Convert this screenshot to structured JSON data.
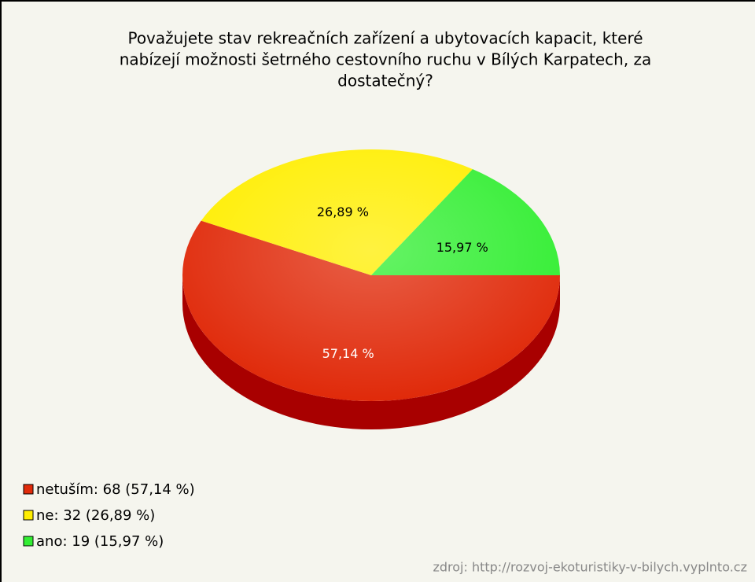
{
  "chart_data": {
    "type": "pie",
    "title": [
      "Považujete stav rekreačních zařízení a ubytovacích kapacit, které",
      "nabízejí možnosti šetrného cestovního ruchu v Bílých Karpatech, za",
      "dostatečný?"
    ],
    "categories": [
      "netuším",
      "ne",
      "ano"
    ],
    "values": [
      68,
      32,
      19
    ],
    "percentages": [
      57.14,
      26.89,
      15.97
    ],
    "percentage_labels": [
      "57,14 %",
      "26,89 %",
      "15,97 %"
    ],
    "legend_labels": [
      "netuším: 68 (57,14 %)",
      "ne: 32 (26,89 %)",
      "ano: 19 (15,97 %)"
    ],
    "colors": [
      "#e02a0a",
      "#ffee00",
      "#33ee33"
    ],
    "side_colors": [
      "#a80000",
      "#c8b800",
      "#1faa1f"
    ],
    "source": "zdroj: http://rozvoj-ekoturistiky-v-bilych.vyplnto.cz"
  }
}
